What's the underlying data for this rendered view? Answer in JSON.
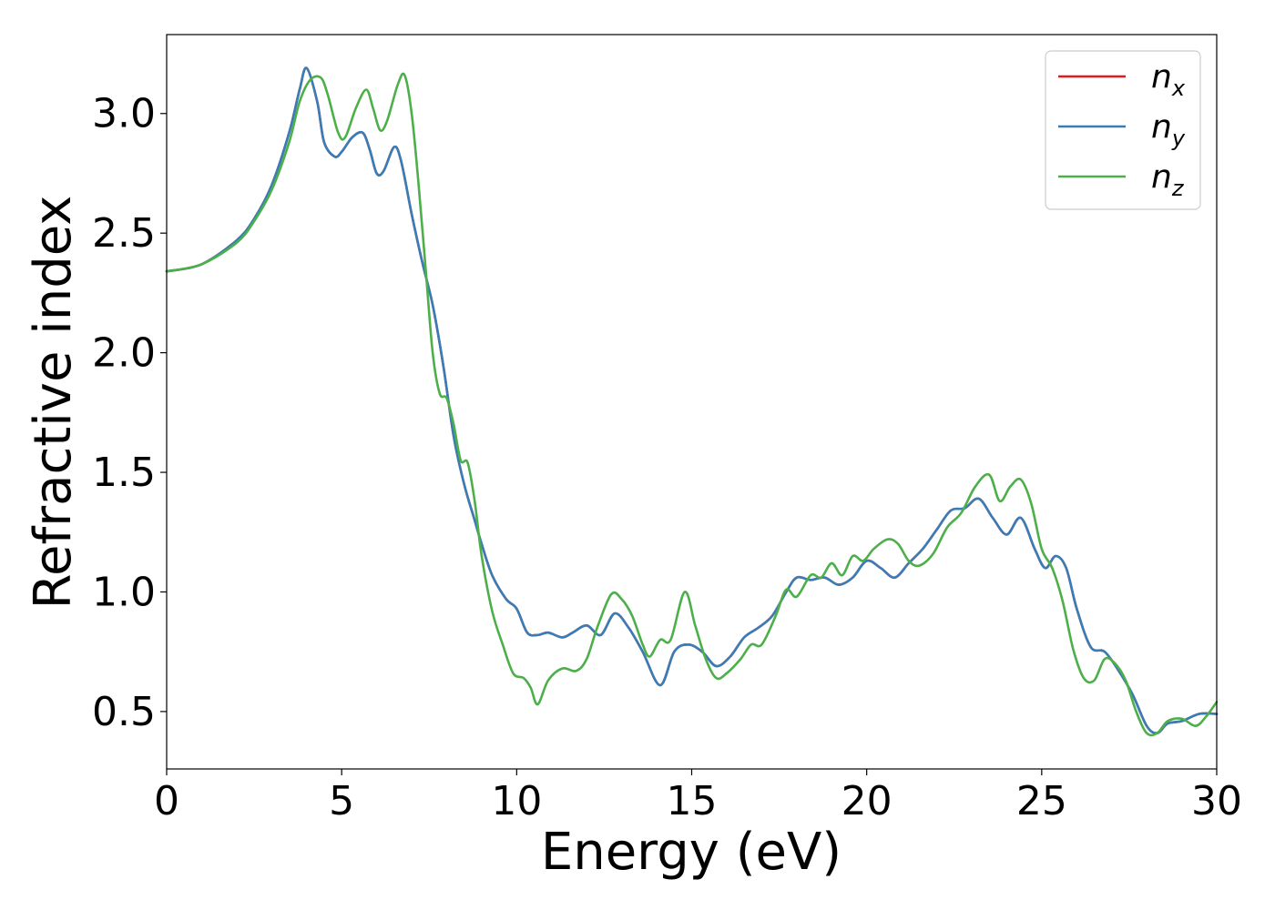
{
  "chart_data": {
    "type": "line",
    "xlabel": "Energy (eV)",
    "ylabel": "Refractive index",
    "xlim": [
      0,
      30
    ],
    "ylim": [
      0.26,
      3.33
    ],
    "xticks": [
      0,
      5,
      10,
      15,
      20,
      25,
      30
    ],
    "yticks": [
      0.5,
      1.0,
      1.5,
      2.0,
      2.5,
      3.0
    ],
    "xtick_labels": [
      "0",
      "5",
      "10",
      "15",
      "20",
      "25",
      "30"
    ],
    "ytick_labels": [
      "0.5",
      "1.0",
      "1.5",
      "2.0",
      "2.5",
      "3.0"
    ],
    "grid": false,
    "legend_position": "top-right",
    "series": [
      {
        "name": "n_x",
        "legend_base": "n",
        "legend_sub": "x",
        "color": "#e41a1c",
        "x": [
          0,
          1,
          2,
          2.5,
          3,
          3.5,
          3.8,
          4.0,
          4.3,
          4.5,
          4.8,
          5.0,
          5.3,
          5.6,
          5.8,
          6.0,
          6.2,
          6.5,
          6.7,
          7.0,
          7.3,
          7.6,
          7.9,
          8.2,
          8.5,
          8.8,
          9.0,
          9.3,
          9.7,
          10.0,
          10.3,
          10.6,
          10.9,
          11.3,
          11.6,
          12.0,
          12.4,
          12.8,
          13.2,
          13.6,
          14.1,
          14.5,
          14.9,
          15.3,
          15.7,
          16.1,
          16.5,
          16.9,
          17.3,
          17.7,
          18.0,
          18.4,
          18.8,
          19.2,
          19.6,
          20.0,
          20.4,
          20.8,
          21.2,
          21.6,
          22.0,
          22.4,
          22.8,
          23.2,
          23.6,
          24.0,
          24.4,
          24.8,
          25.1,
          25.4,
          25.7,
          26.0,
          26.4,
          26.8,
          27.2,
          27.6,
          28.0,
          28.3,
          28.6,
          29.0,
          29.5,
          30.0
        ],
        "values": [
          2.34,
          2.37,
          2.47,
          2.56,
          2.7,
          2.92,
          3.1,
          3.19,
          3.05,
          2.88,
          2.82,
          2.84,
          2.9,
          2.92,
          2.85,
          2.75,
          2.76,
          2.86,
          2.8,
          2.58,
          2.38,
          2.2,
          1.95,
          1.65,
          1.45,
          1.3,
          1.2,
          1.07,
          0.97,
          0.93,
          0.83,
          0.82,
          0.83,
          0.81,
          0.83,
          0.86,
          0.82,
          0.91,
          0.85,
          0.75,
          0.61,
          0.75,
          0.78,
          0.75,
          0.69,
          0.73,
          0.81,
          0.85,
          0.9,
          1.0,
          1.06,
          1.05,
          1.06,
          1.03,
          1.06,
          1.13,
          1.1,
          1.06,
          1.12,
          1.18,
          1.26,
          1.34,
          1.35,
          1.39,
          1.31,
          1.24,
          1.31,
          1.18,
          1.1,
          1.15,
          1.1,
          0.93,
          0.77,
          0.75,
          0.67,
          0.57,
          0.44,
          0.41,
          0.45,
          0.46,
          0.49,
          0.49
        ]
      },
      {
        "name": "n_y",
        "legend_base": "n",
        "legend_sub": "y",
        "color": "#377eb8",
        "x": [
          0,
          1,
          2,
          2.5,
          3,
          3.5,
          3.8,
          4.0,
          4.3,
          4.5,
          4.8,
          5.0,
          5.3,
          5.6,
          5.8,
          6.0,
          6.2,
          6.5,
          6.7,
          7.0,
          7.3,
          7.6,
          7.9,
          8.2,
          8.5,
          8.8,
          9.0,
          9.3,
          9.7,
          10.0,
          10.3,
          10.6,
          10.9,
          11.3,
          11.6,
          12.0,
          12.4,
          12.8,
          13.2,
          13.6,
          14.1,
          14.5,
          14.9,
          15.3,
          15.7,
          16.1,
          16.5,
          16.9,
          17.3,
          17.7,
          18.0,
          18.4,
          18.8,
          19.2,
          19.6,
          20.0,
          20.4,
          20.8,
          21.2,
          21.6,
          22.0,
          22.4,
          22.8,
          23.2,
          23.6,
          24.0,
          24.4,
          24.8,
          25.1,
          25.4,
          25.7,
          26.0,
          26.4,
          26.8,
          27.2,
          27.6,
          28.0,
          28.3,
          28.6,
          29.0,
          29.5,
          30.0
        ],
        "values": [
          2.34,
          2.37,
          2.47,
          2.56,
          2.7,
          2.92,
          3.1,
          3.19,
          3.05,
          2.88,
          2.82,
          2.84,
          2.9,
          2.92,
          2.85,
          2.75,
          2.76,
          2.86,
          2.8,
          2.58,
          2.38,
          2.2,
          1.95,
          1.65,
          1.45,
          1.3,
          1.2,
          1.07,
          0.97,
          0.93,
          0.83,
          0.82,
          0.83,
          0.81,
          0.83,
          0.86,
          0.82,
          0.91,
          0.85,
          0.75,
          0.61,
          0.75,
          0.78,
          0.75,
          0.69,
          0.73,
          0.81,
          0.85,
          0.9,
          1.0,
          1.06,
          1.05,
          1.06,
          1.03,
          1.06,
          1.13,
          1.1,
          1.06,
          1.12,
          1.18,
          1.26,
          1.34,
          1.35,
          1.39,
          1.31,
          1.24,
          1.31,
          1.18,
          1.1,
          1.15,
          1.1,
          0.93,
          0.77,
          0.75,
          0.67,
          0.57,
          0.44,
          0.41,
          0.45,
          0.46,
          0.49,
          0.49
        ]
      },
      {
        "name": "n_z",
        "legend_base": "n",
        "legend_sub": "z",
        "color": "#4daf4a",
        "x": [
          0,
          1,
          2,
          2.5,
          3,
          3.5,
          3.8,
          4.1,
          4.4,
          4.6,
          4.9,
          5.1,
          5.4,
          5.7,
          5.9,
          6.1,
          6.3,
          6.6,
          6.8,
          7.0,
          7.2,
          7.4,
          7.6,
          7.8,
          8.0,
          8.2,
          8.4,
          8.6,
          8.8,
          9.0,
          9.3,
          9.6,
          9.9,
          10.2,
          10.4,
          10.6,
          10.9,
          11.3,
          11.7,
          12.0,
          12.3,
          12.7,
          13.0,
          13.3,
          13.6,
          13.8,
          14.1,
          14.4,
          14.8,
          15.1,
          15.4,
          15.7,
          16.0,
          16.4,
          16.7,
          17.0,
          17.4,
          17.7,
          18.0,
          18.4,
          18.7,
          19.0,
          19.3,
          19.6,
          19.9,
          20.2,
          20.6,
          20.9,
          21.2,
          21.5,
          21.9,
          22.3,
          22.7,
          23.1,
          23.5,
          23.8,
          24.1,
          24.4,
          24.7,
          25.0,
          25.3,
          25.6,
          25.9,
          26.2,
          26.5,
          26.8,
          27.1,
          27.4,
          27.7,
          28.0,
          28.3,
          28.6,
          29.0,
          29.4,
          29.7,
          30.0
        ],
        "values": [
          2.34,
          2.37,
          2.46,
          2.55,
          2.68,
          2.88,
          3.05,
          3.14,
          3.15,
          3.08,
          2.92,
          2.9,
          3.02,
          3.1,
          3.02,
          2.93,
          2.97,
          3.12,
          3.16,
          3.0,
          2.7,
          2.35,
          2.0,
          1.83,
          1.81,
          1.7,
          1.55,
          1.54,
          1.38,
          1.15,
          0.92,
          0.78,
          0.66,
          0.64,
          0.6,
          0.53,
          0.63,
          0.68,
          0.67,
          0.72,
          0.85,
          0.99,
          0.97,
          0.9,
          0.78,
          0.73,
          0.8,
          0.8,
          1.0,
          0.86,
          0.72,
          0.64,
          0.66,
          0.72,
          0.78,
          0.78,
          0.9,
          1.01,
          0.98,
          1.07,
          1.06,
          1.12,
          1.07,
          1.15,
          1.13,
          1.18,
          1.22,
          1.2,
          1.13,
          1.11,
          1.16,
          1.27,
          1.33,
          1.44,
          1.49,
          1.38,
          1.44,
          1.47,
          1.37,
          1.18,
          1.1,
          0.96,
          0.76,
          0.64,
          0.63,
          0.72,
          0.7,
          0.63,
          0.5,
          0.41,
          0.41,
          0.46,
          0.47,
          0.44,
          0.48,
          0.54
        ]
      }
    ]
  }
}
